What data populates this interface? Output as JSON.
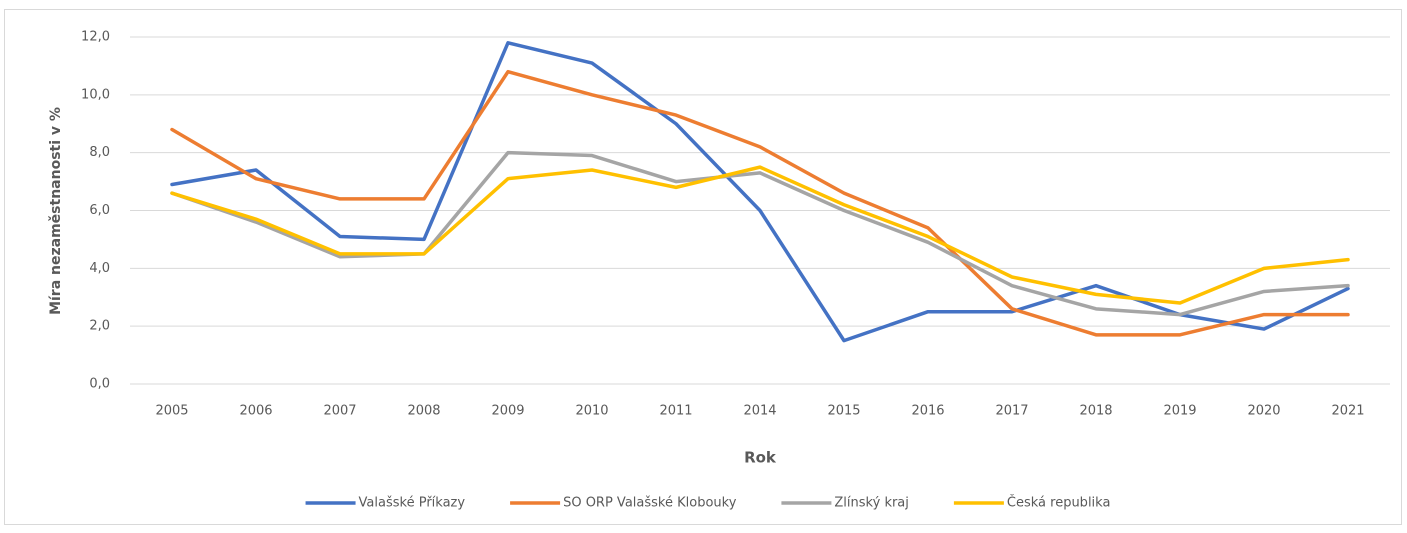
{
  "chart_data": {
    "type": "line",
    "x_label": "Rok",
    "y_label": "Míra nezaměstnanosti v %",
    "categories": [
      "2005",
      "2006",
      "2007",
      "2008",
      "2009",
      "2010",
      "2011",
      "2014",
      "2015",
      "2016",
      "2017",
      "2018",
      "2019",
      "2020",
      "2021"
    ],
    "series": [
      {
        "name": "Valašské Příkazy",
        "color": "#4472c4",
        "values": [
          6.9,
          7.4,
          5.1,
          5.0,
          11.8,
          11.1,
          9.0,
          6.0,
          1.5,
          2.5,
          2.5,
          3.4,
          2.4,
          1.9,
          3.3
        ]
      },
      {
        "name": "SO ORP Valašské Klobouky",
        "color": "#ed7d31",
        "values": [
          8.8,
          7.1,
          6.4,
          6.4,
          10.8,
          10.0,
          9.3,
          8.2,
          6.6,
          5.4,
          2.6,
          1.7,
          1.7,
          2.4,
          2.4
        ]
      },
      {
        "name": "Zlínský kraj",
        "color": "#a5a5a5",
        "values": [
          6.6,
          5.6,
          4.4,
          4.5,
          8.0,
          7.9,
          7.0,
          7.3,
          6.0,
          4.9,
          3.4,
          2.6,
          2.4,
          3.2,
          3.4
        ]
      },
      {
        "name": "Česká republika",
        "color": "#ffc000",
        "values": [
          6.6,
          5.7,
          4.5,
          4.5,
          7.1,
          7.4,
          6.8,
          7.5,
          6.2,
          5.1,
          3.7,
          3.1,
          2.8,
          4.0,
          4.3
        ]
      }
    ],
    "ylim": [
      0,
      12
    ],
    "yticks": [
      {
        "value": 0,
        "label": "0,0"
      },
      {
        "value": 2,
        "label": "2,0"
      },
      {
        "value": 4,
        "label": "4,0"
      },
      {
        "value": 6,
        "label": "6,0"
      },
      {
        "value": 8,
        "label": "8,0"
      },
      {
        "value": 10,
        "label": "10,0"
      },
      {
        "value": 12,
        "label": "12,0"
      }
    ],
    "grid": true,
    "legend": "bottom"
  }
}
